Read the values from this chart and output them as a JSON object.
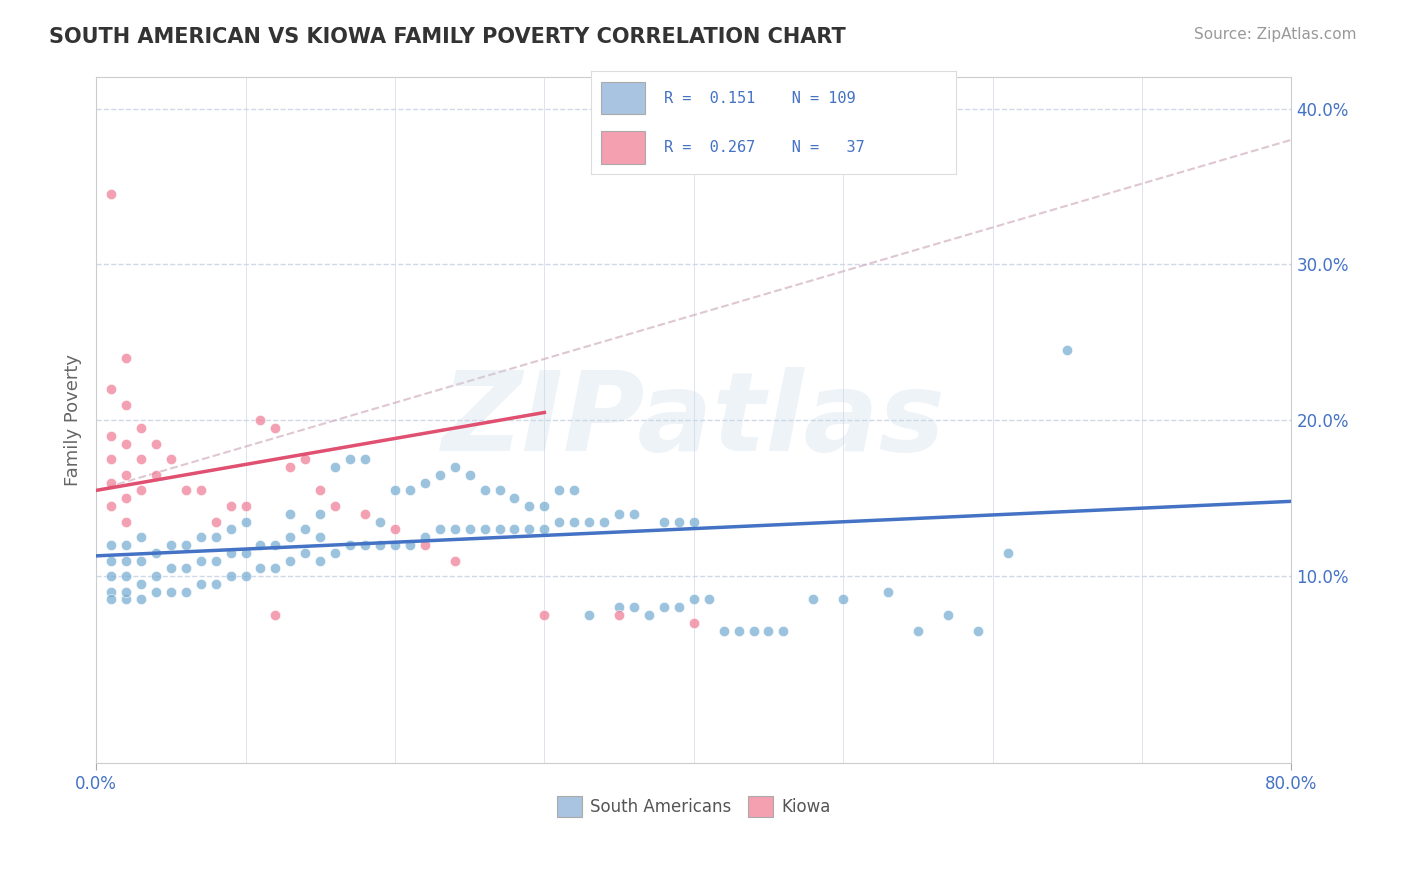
{
  "title": "SOUTH AMERICAN VS KIOWA FAMILY POVERTY CORRELATION CHART",
  "source_text": "Source: ZipAtlas.com",
  "ylabel": "Family Poverty",
  "xlim": [
    0.0,
    0.8
  ],
  "ylim": [
    -0.02,
    0.42
  ],
  "ytick_positions": [
    0.1,
    0.2,
    0.3,
    0.4
  ],
  "ytick_labels": [
    "10.0%",
    "20.0%",
    "30.0%",
    "40.0%"
  ],
  "blue_R": 0.151,
  "blue_N": 109,
  "pink_R": 0.267,
  "pink_N": 37,
  "blue_color": "#a8c4e0",
  "pink_color": "#f4a0b0",
  "blue_line_color": "#4472c4",
  "pink_line_color": "#e05070",
  "blue_scatter_color": "#7aafd4",
  "pink_scatter_color": "#f08098",
  "legend_label_blue": "South Americans",
  "legend_label_pink": "Kiowa",
  "stat_color": "#4472c4",
  "watermark": "ZIPatlas",
  "background_color": "#ffffff",
  "grid_color": "#d0d8e8",
  "blue_trend_x": [
    0.0,
    0.8
  ],
  "blue_trend_y": [
    0.113,
    0.148
  ],
  "pink_trend_x": [
    0.0,
    0.3
  ],
  "pink_trend_y": [
    0.155,
    0.205
  ],
  "blue_x": [
    0.01,
    0.01,
    0.01,
    0.01,
    0.01,
    0.02,
    0.02,
    0.02,
    0.02,
    0.02,
    0.03,
    0.03,
    0.03,
    0.03,
    0.04,
    0.04,
    0.04,
    0.05,
    0.05,
    0.05,
    0.06,
    0.06,
    0.06,
    0.07,
    0.07,
    0.07,
    0.08,
    0.08,
    0.08,
    0.09,
    0.09,
    0.09,
    0.1,
    0.1,
    0.1,
    0.11,
    0.11,
    0.12,
    0.12,
    0.13,
    0.13,
    0.13,
    0.14,
    0.14,
    0.15,
    0.15,
    0.15,
    0.16,
    0.16,
    0.17,
    0.17,
    0.18,
    0.18,
    0.19,
    0.19,
    0.2,
    0.2,
    0.21,
    0.21,
    0.22,
    0.22,
    0.23,
    0.23,
    0.24,
    0.24,
    0.25,
    0.25,
    0.26,
    0.26,
    0.27,
    0.27,
    0.28,
    0.28,
    0.29,
    0.29,
    0.3,
    0.3,
    0.31,
    0.31,
    0.32,
    0.32,
    0.33,
    0.33,
    0.34,
    0.35,
    0.35,
    0.36,
    0.36,
    0.37,
    0.38,
    0.38,
    0.39,
    0.39,
    0.4,
    0.4,
    0.41,
    0.42,
    0.43,
    0.44,
    0.45,
    0.46,
    0.48,
    0.5,
    0.53,
    0.55,
    0.57,
    0.59,
    0.61,
    0.65
  ],
  "blue_y": [
    0.09,
    0.1,
    0.11,
    0.12,
    0.085,
    0.085,
    0.09,
    0.1,
    0.11,
    0.12,
    0.085,
    0.095,
    0.11,
    0.125,
    0.09,
    0.1,
    0.115,
    0.09,
    0.105,
    0.12,
    0.09,
    0.105,
    0.12,
    0.095,
    0.11,
    0.125,
    0.095,
    0.11,
    0.125,
    0.1,
    0.115,
    0.13,
    0.1,
    0.115,
    0.135,
    0.105,
    0.12,
    0.105,
    0.12,
    0.11,
    0.125,
    0.14,
    0.115,
    0.13,
    0.11,
    0.125,
    0.14,
    0.115,
    0.17,
    0.12,
    0.175,
    0.12,
    0.175,
    0.12,
    0.135,
    0.12,
    0.155,
    0.12,
    0.155,
    0.125,
    0.16,
    0.13,
    0.165,
    0.13,
    0.17,
    0.13,
    0.165,
    0.13,
    0.155,
    0.13,
    0.155,
    0.13,
    0.15,
    0.13,
    0.145,
    0.13,
    0.145,
    0.135,
    0.155,
    0.135,
    0.155,
    0.135,
    0.075,
    0.135,
    0.08,
    0.14,
    0.08,
    0.14,
    0.075,
    0.08,
    0.135,
    0.08,
    0.135,
    0.085,
    0.135,
    0.085,
    0.065,
    0.065,
    0.065,
    0.065,
    0.065,
    0.085,
    0.085,
    0.09,
    0.065,
    0.075,
    0.065,
    0.115,
    0.245
  ],
  "pink_x": [
    0.01,
    0.01,
    0.01,
    0.01,
    0.01,
    0.01,
    0.02,
    0.02,
    0.02,
    0.02,
    0.02,
    0.02,
    0.03,
    0.03,
    0.03,
    0.04,
    0.04,
    0.05,
    0.06,
    0.07,
    0.08,
    0.09,
    0.1,
    0.11,
    0.12,
    0.13,
    0.14,
    0.15,
    0.16,
    0.18,
    0.2,
    0.22,
    0.24,
    0.3,
    0.35,
    0.4,
    0.12
  ],
  "pink_y": [
    0.345,
    0.22,
    0.19,
    0.175,
    0.16,
    0.145,
    0.24,
    0.21,
    0.185,
    0.165,
    0.15,
    0.135,
    0.195,
    0.175,
    0.155,
    0.185,
    0.165,
    0.175,
    0.155,
    0.155,
    0.135,
    0.145,
    0.145,
    0.2,
    0.195,
    0.17,
    0.175,
    0.155,
    0.145,
    0.14,
    0.13,
    0.12,
    0.11,
    0.075,
    0.075,
    0.07,
    0.075
  ]
}
